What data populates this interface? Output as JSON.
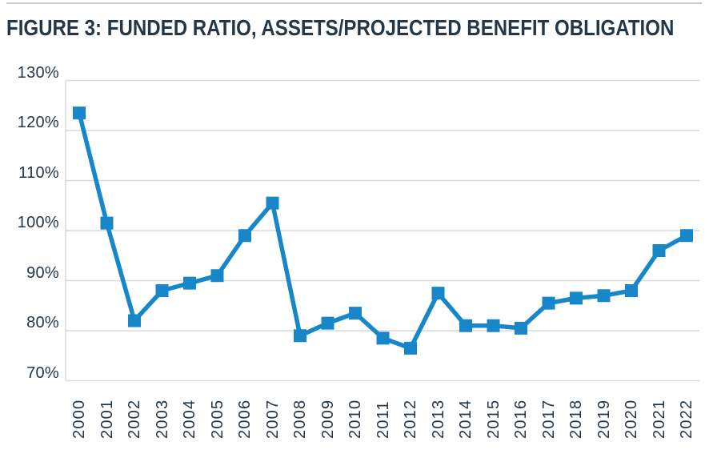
{
  "figure": {
    "title": "FIGURE 3: FUNDED RATIO, ASSETS/PROJECTED BENEFIT OBLIGATION"
  },
  "chart_data": {
    "type": "line",
    "title": "FIGURE 3: FUNDED RATIO, ASSETS/PROJECTED BENEFIT OBLIGATION",
    "xlabel": "",
    "ylabel": "",
    "categories": [
      "2000",
      "2001",
      "2002",
      "2003",
      "2004",
      "2005",
      "2006",
      "2007",
      "2008",
      "2009",
      "2010",
      "2011",
      "2012",
      "2013",
      "2014",
      "2015",
      "2016",
      "2017",
      "2018",
      "2019",
      "2020",
      "2021",
      "2022"
    ],
    "series": [
      {
        "name": "Funded ratio",
        "values": [
          123.5,
          101.5,
          82,
          88,
          89.5,
          91,
          99,
          105.5,
          79,
          81.5,
          83.5,
          78.5,
          76.5,
          87.5,
          81,
          81,
          80.5,
          85.5,
          86.5,
          87,
          88,
          96,
          99
        ]
      }
    ],
    "unit": "%",
    "ylim": [
      70,
      130
    ],
    "y_ticks": [
      130,
      120,
      110,
      100,
      90,
      80,
      70
    ],
    "y_tick_labels": [
      "130%",
      "120%",
      "110%",
      "100%",
      "90%",
      "80%",
      "70%"
    ],
    "grid": "horizontal",
    "legend": "none",
    "marker": "square",
    "line_color": "#1787C9"
  },
  "colors": {
    "accent_blue": "#1787C9",
    "text_dark": "#253746",
    "gridline": "#D9D9D9",
    "top_rule": "#CCCCCC",
    "background": "#FFFFFF"
  }
}
